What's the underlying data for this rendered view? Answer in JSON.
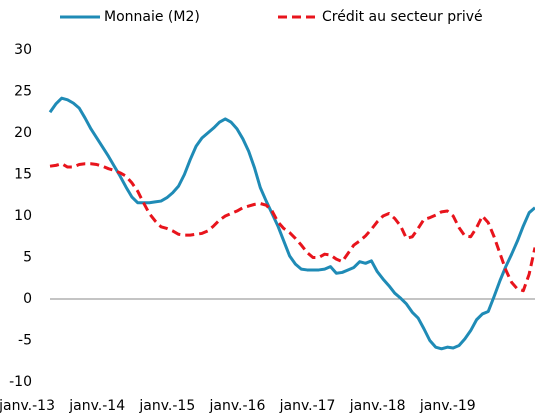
{
  "chart_data": {
    "type": "line",
    "categories": [
      "janv.-13",
      null,
      null,
      null,
      null,
      null,
      null,
      null,
      null,
      null,
      null,
      null,
      "janv.-14",
      null,
      null,
      null,
      null,
      null,
      null,
      null,
      null,
      null,
      null,
      null,
      "janv.-15",
      null,
      null,
      null,
      null,
      null,
      null,
      null,
      null,
      null,
      null,
      null,
      "janv.-16",
      null,
      null,
      null,
      null,
      null,
      null,
      null,
      null,
      null,
      null,
      null,
      "janv.-17",
      null,
      null,
      null,
      null,
      null,
      null,
      null,
      null,
      null,
      null,
      null,
      "janv.-18",
      null,
      null,
      null,
      null,
      null,
      null,
      null,
      null,
      null,
      null,
      null,
      "janv.-19",
      null,
      null,
      null,
      null,
      null,
      null,
      null,
      null,
      null,
      null,
      null
    ],
    "series": [
      {
        "name": "Monnaie (M2)",
        "color": "#1f8bb6",
        "dashed": false,
        "values": [
          22.5,
          23.5,
          24.2,
          24,
          23.6,
          23,
          21.8,
          20.5,
          19.4,
          18.3,
          17.2,
          16,
          14.8,
          13.5,
          12.3,
          11.6,
          11.6,
          11.6,
          11.7,
          11.8,
          12.2,
          12.8,
          13.6,
          15,
          16.8,
          18.4,
          19.4,
          20,
          20.6,
          21.3,
          21.7,
          21.3,
          20.5,
          19.3,
          17.8,
          15.8,
          13.4,
          11.8,
          10.3,
          8.8,
          7,
          5.2,
          4.2,
          3.6,
          3.5,
          3.5,
          3.5,
          3.6,
          3.9,
          3.1,
          3.2,
          3.5,
          3.8,
          4.5,
          4.3,
          4.6,
          3.3,
          2.4,
          1.6,
          0.7,
          0.1,
          -0.6,
          -1.6,
          -2.3,
          -3.6,
          -5,
          -5.8,
          -6,
          -5.8,
          -5.9,
          -5.6,
          -4.8,
          -3.8,
          -2.5,
          -1.8,
          -1.5,
          0.3,
          2.2,
          3.9,
          5.4,
          7,
          8.8,
          10.4,
          11
        ]
      },
      {
        "name": "Crédit au secteur privé",
        "color": "#e8141c",
        "dashed": true,
        "values": [
          16,
          16.1,
          16.3,
          15.9,
          15.9,
          16.2,
          16.3,
          16.3,
          16.2,
          16,
          15.7,
          15.5,
          15.2,
          14.8,
          14,
          13,
          11.6,
          10.3,
          9.4,
          8.7,
          8.5,
          8.2,
          7.8,
          7.7,
          7.7,
          7.8,
          7.9,
          8.2,
          8.8,
          9.5,
          10,
          10.3,
          10.6,
          11,
          11.2,
          11.4,
          11.5,
          11.3,
          10.6,
          9.3,
          8.5,
          8,
          7.3,
          6.5,
          5.6,
          5,
          5,
          5.4,
          5.3,
          4.8,
          4.5,
          5.5,
          6.5,
          7,
          7.6,
          8.4,
          9.3,
          10,
          10.3,
          9.7,
          8.8,
          7.3,
          7.5,
          8.5,
          9.6,
          9.8,
          10.1,
          10.5,
          10.6,
          10,
          8.6,
          7.6,
          7.5,
          8.6,
          10,
          9.2,
          7.5,
          5.5,
          3.5,
          2,
          1.2,
          1,
          3,
          6.2
        ]
      }
    ],
    "ylim": [
      -10,
      30
    ],
    "yticks": [
      -10,
      -5,
      0,
      5,
      10,
      15,
      20,
      25,
      30
    ],
    "grid": false
  }
}
